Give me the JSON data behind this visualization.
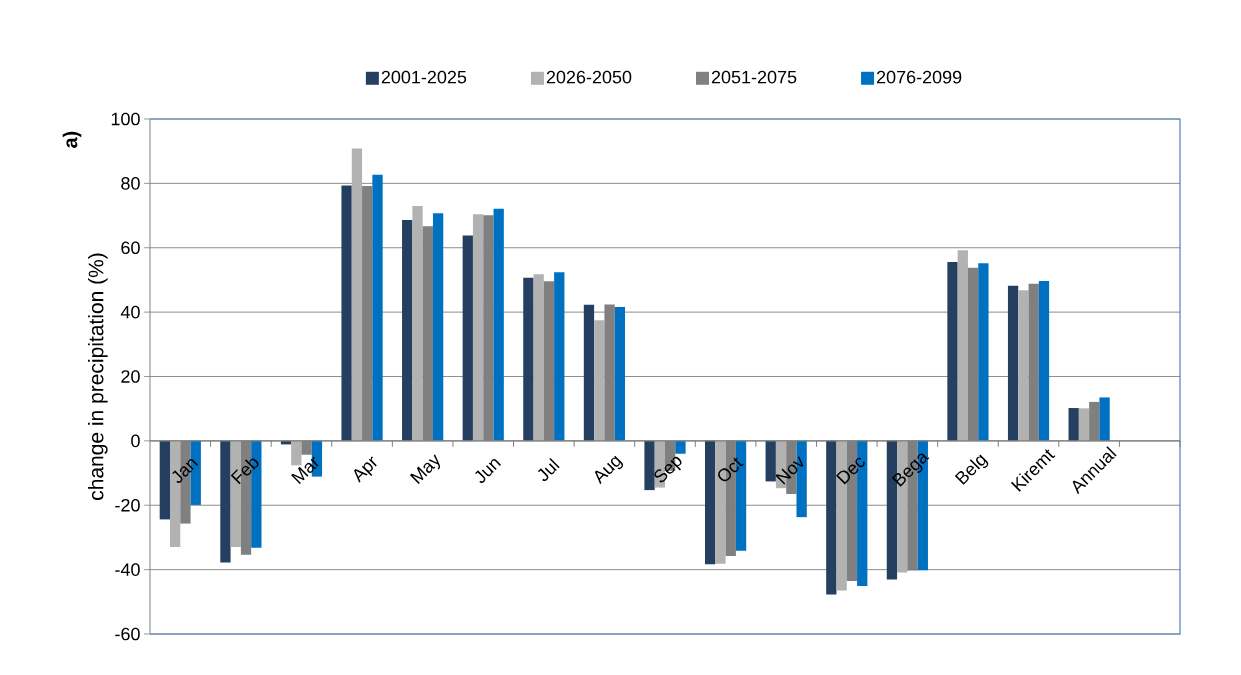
{
  "chart_data": {
    "type": "bar",
    "ylabel": "change in precipitation (%)",
    "annotations": [
      "a)"
    ],
    "categories": [
      "Jan",
      "Feb",
      "Mar",
      "Apr",
      "May",
      "Jun",
      "Jul",
      "Aug",
      "Sep",
      "Oct",
      "Nov",
      "Dec",
      "Bega",
      "Belg",
      "Kiremt",
      "Annual"
    ],
    "series": [
      {
        "name": "2001-2025",
        "color": "#243f60",
        "values": [
          -24.4,
          -37.8,
          -1.1,
          79.3,
          68.6,
          63.8,
          50.7,
          42.3,
          -15.3,
          -38.3,
          -12.6,
          -47.7,
          -43.1,
          55.6,
          48.2,
          10.2
        ]
      },
      {
        "name": "2026-2050",
        "color": "#b2b2b2",
        "values": [
          -33.0,
          -33.0,
          -7.6,
          90.8,
          73.0,
          70.4,
          51.8,
          37.5,
          -14.5,
          -38.2,
          -14.7,
          -46.5,
          -40.9,
          59.2,
          46.8,
          10.1
        ]
      },
      {
        "name": "2051-2075",
        "color": "#808080",
        "values": [
          -25.7,
          -35.4,
          -4.3,
          79.2,
          66.7,
          70.1,
          49.6,
          42.4,
          -9.3,
          -35.8,
          -16.5,
          -43.5,
          -40.3,
          53.8,
          48.8,
          12.1
        ]
      },
      {
        "name": "2076-2099",
        "color": "#0070c0",
        "values": [
          -19.9,
          -33.2,
          -11.1,
          82.7,
          70.7,
          72.1,
          52.4,
          41.6,
          -4.0,
          -34.1,
          -23.7,
          -45.1,
          -40.2,
          55.2,
          49.7,
          13.5
        ]
      }
    ],
    "ylim": [
      -60,
      100
    ],
    "yticks": [
      -60,
      -40,
      -20,
      0,
      20,
      40,
      60,
      80,
      100
    ],
    "grid": "y",
    "legend": "top"
  }
}
